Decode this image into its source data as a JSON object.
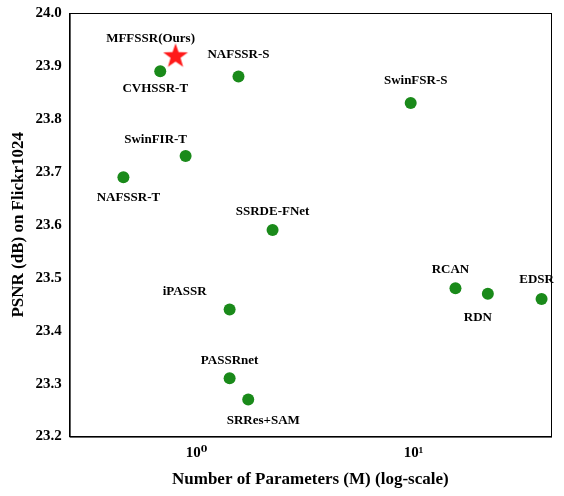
{
  "chart_data": {
    "type": "scatter",
    "x_label": "Number of Parameters (M) (log-scale)",
    "y_label": "PSNR (dB) on Flickr1024",
    "log": "x",
    "grid": false,
    "xlim": [
      0.26,
      43
    ],
    "xticks": [
      {
        "value": 1,
        "label": "10⁰"
      },
      {
        "value": 10,
        "label": "10¹"
      }
    ],
    "ylim": [
      23.2,
      24.0
    ],
    "yticks": [
      23.2,
      23.3,
      23.4,
      23.5,
      23.6,
      23.7,
      23.8,
      23.9,
      {
        "value": 24,
        "label": "24.0"
      }
    ],
    "series": [
      {
        "color": "#ff1a1a",
        "marker": "star",
        "labels": [
          "MFFSSR(Ours)"
        ],
        "x": [
          0.8
        ],
        "values": [
          23.92
        ]
      },
      {
        "color": "#1a8a1a",
        "marker": "circle",
        "labels": [
          "CVHSSR-T",
          "NAFSSR-S",
          "SwinFSR-S",
          "SwinFIR-T",
          "NAFSSR-T",
          "SSRDE-FNet",
          "iPASSR",
          "RCAN",
          "RDN",
          "EDSR",
          "PASSRnet",
          "SRRes+SAM"
        ],
        "x": [
          0.68,
          1.56,
          9.7,
          0.89,
          0.46,
          2.24,
          1.42,
          15.6,
          22.0,
          38.9,
          1.42,
          1.73
        ],
        "values": [
          23.89,
          23.88,
          23.83,
          23.73,
          23.69,
          23.59,
          23.44,
          23.48,
          23.47,
          23.46,
          23.31,
          23.27
        ]
      }
    ]
  }
}
